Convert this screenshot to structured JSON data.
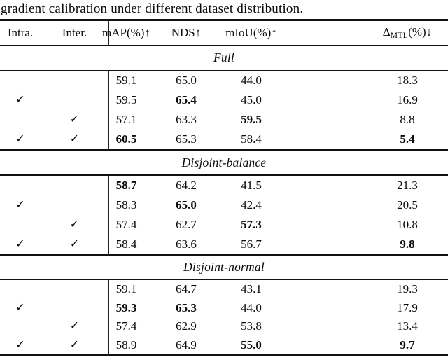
{
  "caption": "gradient calibration under different dataset distribution.",
  "colors": {
    "background": "#ffffff",
    "text": "#0b0b0b",
    "rule": "#111111"
  },
  "table": {
    "checkmark": "✓",
    "columns": [
      "Intra.",
      "Inter.",
      "mAP(%)↑",
      "NDS↑",
      "mIoU(%)↑"
    ],
    "delta_header": {
      "symbol": "Δ",
      "subscript": "MTL",
      "suffix": "(%)↓"
    },
    "sections": [
      {
        "label": "Full",
        "rows": [
          {
            "intra": false,
            "inter": false,
            "values": [
              "59.1",
              "65.0",
              "44.0",
              "18.3"
            ],
            "bold": [
              false,
              false,
              false,
              false
            ]
          },
          {
            "intra": true,
            "inter": false,
            "values": [
              "59.5",
              "65.4",
              "45.0",
              "16.9"
            ],
            "bold": [
              false,
              true,
              false,
              false
            ]
          },
          {
            "intra": false,
            "inter": true,
            "values": [
              "57.1",
              "63.3",
              "59.5",
              "8.8"
            ],
            "bold": [
              false,
              false,
              true,
              false
            ]
          },
          {
            "intra": true,
            "inter": true,
            "values": [
              "60.5",
              "65.3",
              "58.4",
              "5.4"
            ],
            "bold": [
              true,
              false,
              false,
              true
            ]
          }
        ]
      },
      {
        "label": "Disjoint-balance",
        "rows": [
          {
            "intra": false,
            "inter": false,
            "values": [
              "58.7",
              "64.2",
              "41.5",
              "21.3"
            ],
            "bold": [
              true,
              false,
              false,
              false
            ]
          },
          {
            "intra": true,
            "inter": false,
            "values": [
              "58.3",
              "65.0",
              "42.4",
              "20.5"
            ],
            "bold": [
              false,
              true,
              false,
              false
            ]
          },
          {
            "intra": false,
            "inter": true,
            "values": [
              "57.4",
              "62.7",
              "57.3",
              "10.8"
            ],
            "bold": [
              false,
              false,
              true,
              false
            ]
          },
          {
            "intra": true,
            "inter": true,
            "values": [
              "58.4",
              "63.6",
              "56.7",
              "9.8"
            ],
            "bold": [
              false,
              false,
              false,
              true
            ]
          }
        ]
      },
      {
        "label": "Disjoint-normal",
        "rows": [
          {
            "intra": false,
            "inter": false,
            "values": [
              "59.1",
              "64.7",
              "43.1",
              "19.3"
            ],
            "bold": [
              false,
              false,
              false,
              false
            ]
          },
          {
            "intra": true,
            "inter": false,
            "values": [
              "59.3",
              "65.3",
              "44.0",
              "17.9"
            ],
            "bold": [
              true,
              true,
              false,
              false
            ]
          },
          {
            "intra": false,
            "inter": true,
            "values": [
              "57.4",
              "62.9",
              "53.8",
              "13.4"
            ],
            "bold": [
              false,
              false,
              false,
              false
            ]
          },
          {
            "intra": true,
            "inter": true,
            "values": [
              "58.9",
              "64.9",
              "55.0",
              "9.7"
            ],
            "bold": [
              false,
              false,
              true,
              true
            ]
          }
        ]
      }
    ]
  }
}
